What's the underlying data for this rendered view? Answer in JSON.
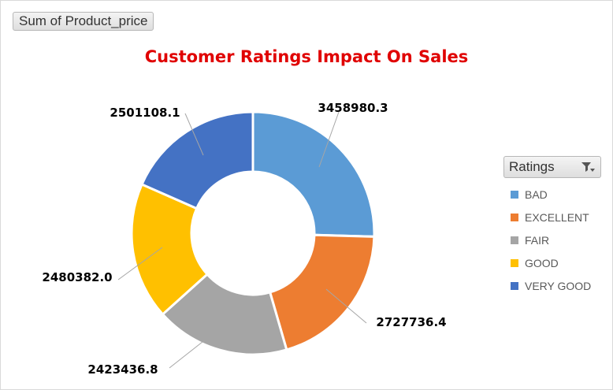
{
  "pivot": {
    "value_field_button": "Sum of Product_price"
  },
  "chart_data": {
    "type": "pie",
    "variant": "doughnut",
    "title": "Customer Ratings Impact On Sales",
    "categories": [
      "BAD",
      "EXCELLENT",
      "FAIR",
      "GOOD",
      "VERY GOOD"
    ],
    "values": [
      3458980.3,
      2727736.4,
      2423436.8,
      2480382.0,
      2501108.1
    ],
    "data_labels": [
      "3458980.3",
      "2727736.4",
      "2423436.8",
      "2480382.0",
      "2501108.1"
    ],
    "colors": [
      "#5b9bd5",
      "#ed7d31",
      "#a5a5a5",
      "#ffc000",
      "#4472c4"
    ],
    "legend": {
      "title": "Ratings",
      "position": "right",
      "filter_icon": "filter-dropdown-icon"
    }
  }
}
